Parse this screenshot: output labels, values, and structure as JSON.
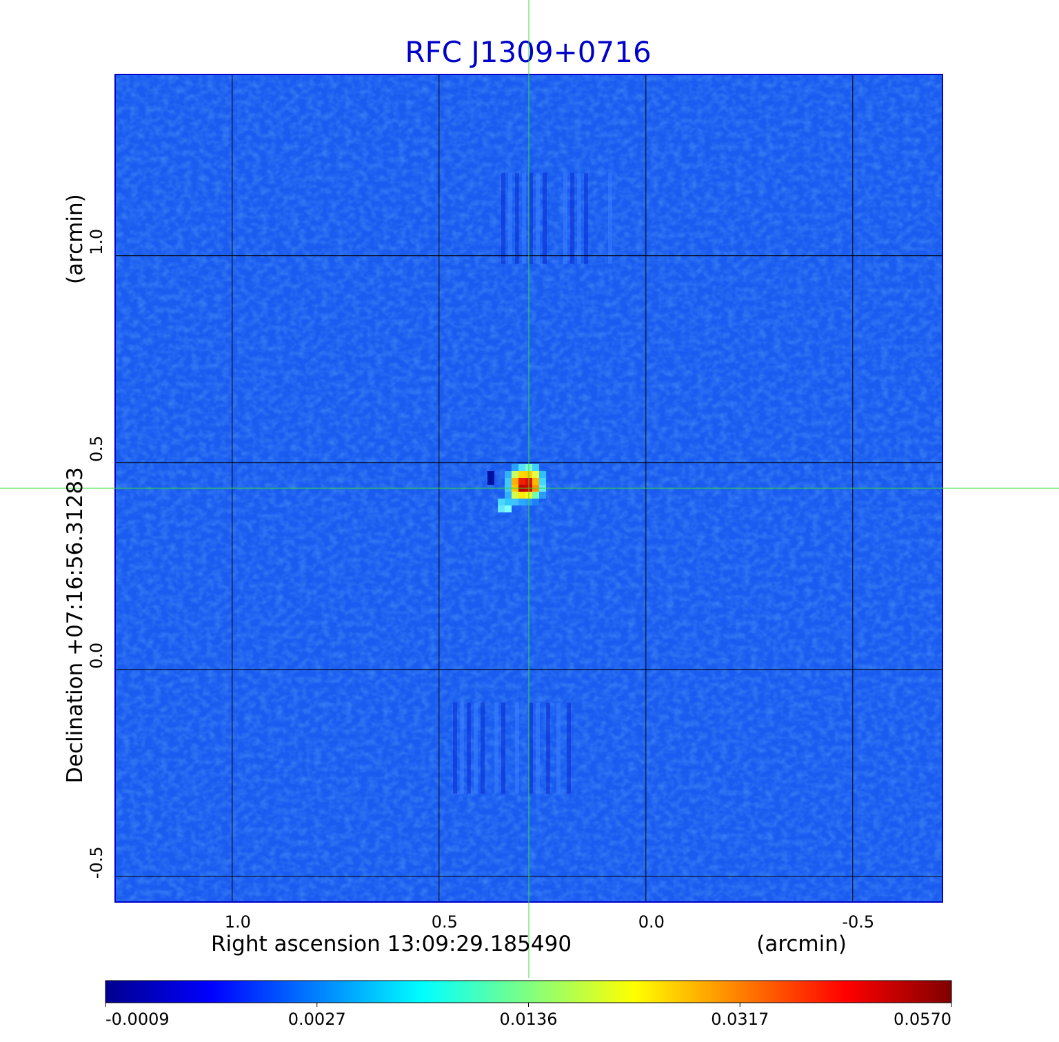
{
  "chart_data": {
    "type": "heatmap",
    "title": "RFC J1309+0716",
    "title_color": "#0000cc",
    "xlabel": "Right ascension  13:09:29.185490",
    "xunit": "(arcmin)",
    "ylabel": "Declination  +07:16:56.31283",
    "yunit": "(arcmin)",
    "xlim": [
      1.283,
      -0.717
    ],
    "ylim": [
      -0.562,
      1.438
    ],
    "x_ticks": [
      1.0,
      0.5,
      0.0,
      -0.5
    ],
    "y_ticks": [
      1.0,
      0.5,
      0.0,
      -0.5
    ],
    "x_tick_labels": [
      "1.0",
      "0.5",
      "0.0",
      "-0.5"
    ],
    "y_tick_labels": [
      "1.0",
      "0.5",
      "0.0",
      "-0.5"
    ],
    "grid": true,
    "crosshair": {
      "x": 0.283,
      "y": 0.438,
      "color": "#33dd33"
    },
    "source_peak": {
      "x": 0.283,
      "y": 0.438,
      "value": 0.057
    },
    "colormap": "jet",
    "colorbar": {
      "tick_values": [
        -0.0009,
        0.0027,
        0.0136,
        0.0317,
        0.057
      ],
      "tick_labels": [
        "-0.0009",
        "0.0027",
        "0.0136",
        "0.0317",
        "0.0570"
      ],
      "stops": [
        "#00008f",
        "#0000ff",
        "#0080ff",
        "#00ffff",
        "#80ff80",
        "#ffff00",
        "#ff8000",
        "#ff0000",
        "#800000"
      ]
    },
    "background_color": "#1a5cf0",
    "plot_border_color": "#0000cc"
  }
}
